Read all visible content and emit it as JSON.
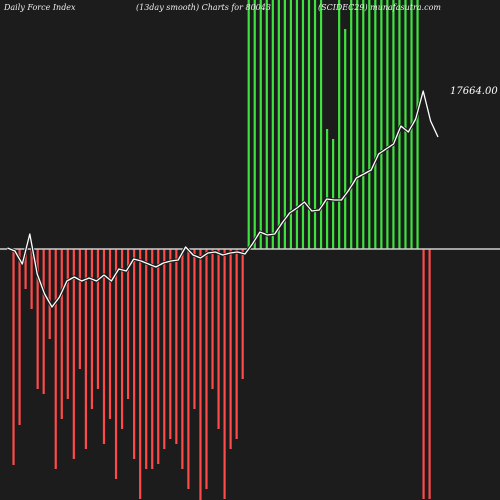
{
  "header": {
    "left": "Daily Force  Index",
    "middle": "(13day smooth) Charts for 80043",
    "right": "(SCIDEC29) munafasutra.com"
  },
  "chart_data": {
    "type": "bar",
    "title": "Daily Force  Index",
    "subtitle": "(13day smooth) Charts for 80043",
    "source": "(SCIDEC29) munafasutra.com",
    "last_value_label": "17664.00",
    "colors": {
      "positive": "#3ee23e",
      "negative": "#ff4a4a",
      "line": "#ffffff",
      "zero": "#cfcfcf",
      "background": "#1c1c1c"
    },
    "bars": [
      0,
      -216,
      -176,
      -40,
      -60,
      -140,
      -145,
      -90,
      -220,
      -170,
      -150,
      -210,
      -120,
      -200,
      -160,
      -140,
      -195,
      -170,
      -230,
      -180,
      -150,
      -210,
      -250,
      -220,
      -220,
      -215,
      -200,
      -190,
      -195,
      -220,
      -240,
      -160,
      -260,
      -240,
      -140,
      -180,
      -250,
      -200,
      -190,
      -130,
      250,
      250,
      250,
      250,
      250,
      250,
      250,
      250,
      250,
      250,
      250,
      250,
      250,
      120,
      110,
      250,
      220,
      250,
      250,
      250,
      250,
      250,
      250,
      250,
      250,
      250,
      250,
      250,
      250,
      -250,
      -250
    ],
    "line": [
      1,
      -2,
      -15,
      15,
      -25,
      -45,
      -58,
      -48,
      -32,
      -28,
      -32,
      -29,
      -32,
      -26,
      -32,
      -20,
      -22,
      -10,
      -12,
      -15,
      -18,
      -14,
      -12,
      -11,
      2,
      -6,
      -9,
      -4,
      -3,
      -6,
      -4,
      -3,
      -5,
      5,
      17,
      14,
      15,
      26,
      36,
      41,
      47,
      38,
      39,
      50,
      49,
      49,
      59,
      71,
      75,
      79,
      95,
      100,
      105,
      123,
      117,
      130,
      158,
      128,
      112
    ],
    "ylim": [
      -250,
      250
    ]
  }
}
